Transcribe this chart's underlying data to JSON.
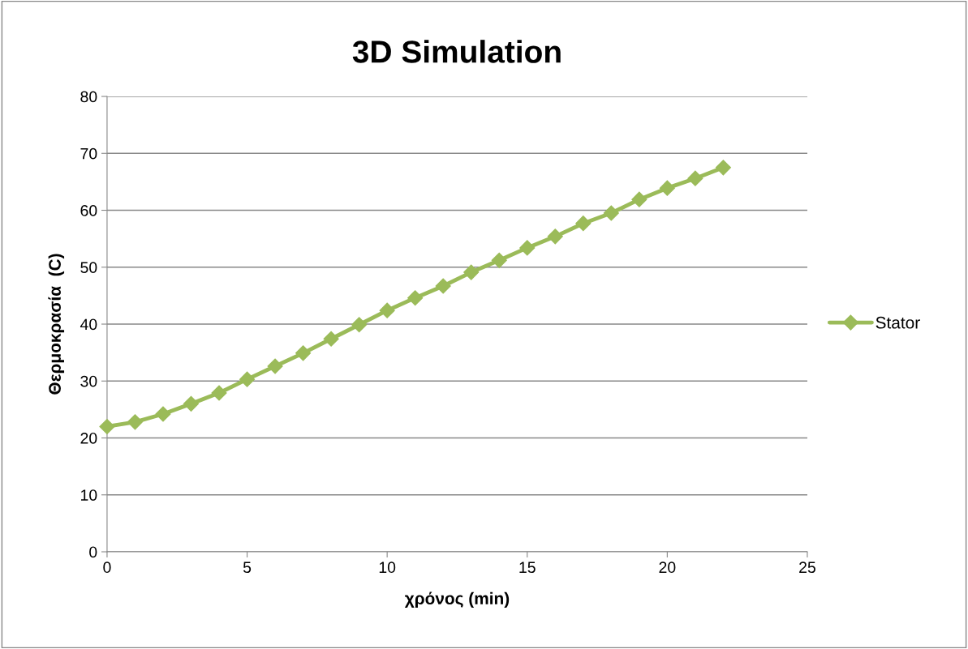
{
  "chart_data": {
    "type": "line",
    "title": "3D Simulation",
    "xlabel": "χρόνος (min)",
    "ylabel": "Θερμοκρασία  (C)",
    "x": [
      0,
      1,
      2,
      3,
      4,
      5,
      6,
      7,
      8,
      9,
      10,
      11,
      12,
      13,
      14,
      15,
      16,
      17,
      18,
      19,
      20,
      21,
      22
    ],
    "series": [
      {
        "name": "Stator",
        "color": "#9bbb59",
        "values": [
          22.0,
          22.8,
          24.2,
          26.0,
          27.9,
          30.3,
          32.6,
          34.9,
          37.4,
          39.9,
          42.4,
          44.6,
          46.7,
          49.1,
          51.2,
          53.4,
          55.4,
          57.7,
          59.5,
          61.9,
          63.9,
          65.6,
          67.5
        ]
      }
    ],
    "xlim": [
      0,
      25
    ],
    "xticks": [
      0,
      5,
      10,
      15,
      20,
      25
    ],
    "ylim": [
      0,
      80
    ],
    "yticks": [
      0,
      10,
      20,
      30,
      40,
      50,
      60,
      70,
      80
    ],
    "grid": "y",
    "legend": "right",
    "marker": "diamond",
    "line_style": "solid"
  }
}
